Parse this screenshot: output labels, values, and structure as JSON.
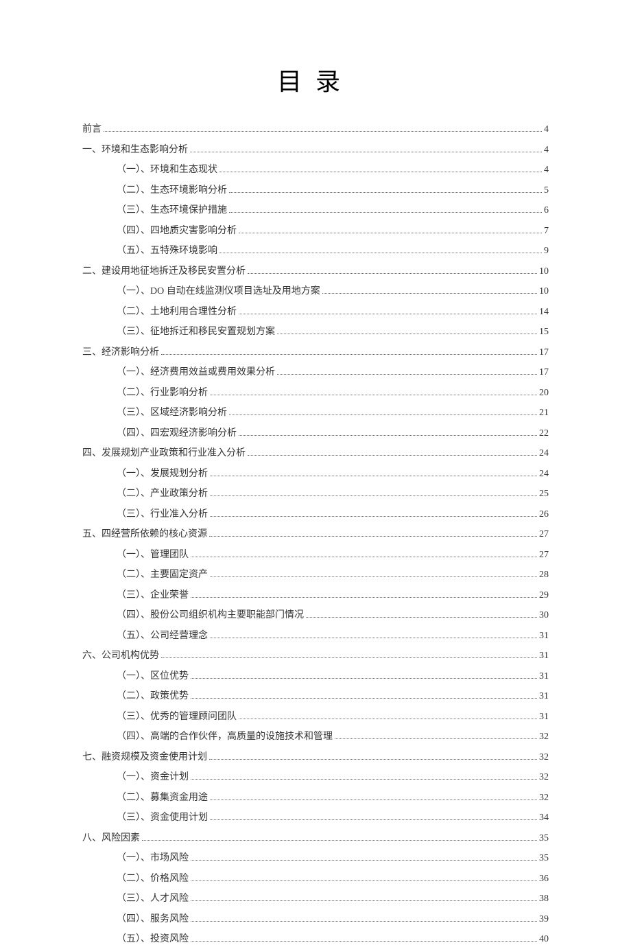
{
  "title": "目录",
  "entries": [
    {
      "level": 1,
      "label": "前言",
      "page": 4
    },
    {
      "level": 1,
      "label": "一、环境和生态影响分析",
      "page": 4
    },
    {
      "level": 2,
      "label": "（一）、环境和生态现状",
      "page": 4
    },
    {
      "level": 2,
      "label": "（二）、生态环境影响分析",
      "page": 5
    },
    {
      "level": 2,
      "label": "（三）、生态环境保护措施",
      "page": 6
    },
    {
      "level": 2,
      "label": "（四）、四地质灾害影响分析",
      "page": 7
    },
    {
      "level": 2,
      "label": "（五）、五特殊环境影响",
      "page": 9
    },
    {
      "level": 1,
      "label": "二、建设用地征地拆迁及移民安置分析",
      "page": 10
    },
    {
      "level": 2,
      "label": "（一）、DO 自动在线监测仪项目选址及用地方案",
      "page": 10
    },
    {
      "level": 2,
      "label": "（二）、土地利用合理性分析",
      "page": 14
    },
    {
      "level": 2,
      "label": "（三）、征地拆迁和移民安置规划方案",
      "page": 15
    },
    {
      "level": 1,
      "label": "三、经济影响分析",
      "page": 17
    },
    {
      "level": 2,
      "label": "（一）、经济费用效益或费用效果分析",
      "page": 17
    },
    {
      "level": 2,
      "label": "（二）、行业影响分析",
      "page": 20
    },
    {
      "level": 2,
      "label": "（三）、区域经济影响分析",
      "page": 21
    },
    {
      "level": 2,
      "label": "（四）、四宏观经济影响分析",
      "page": 22
    },
    {
      "level": 1,
      "label": "四、发展规划产业政策和行业准入分析",
      "page": 24
    },
    {
      "level": 2,
      "label": "（一）、发展规划分析",
      "page": 24
    },
    {
      "level": 2,
      "label": "（二）、产业政策分析",
      "page": 25
    },
    {
      "level": 2,
      "label": "（三）、行业准入分析",
      "page": 26
    },
    {
      "level": 1,
      "label": "五、四经营所依赖的核心资源",
      "page": 27
    },
    {
      "level": 2,
      "label": "（一）、管理团队",
      "page": 27
    },
    {
      "level": 2,
      "label": "（二）、主要固定资产",
      "page": 28
    },
    {
      "level": 2,
      "label": "（三）、企业荣誉",
      "page": 29
    },
    {
      "level": 2,
      "label": "（四）、股份公司组织机构主要职能部门情况",
      "page": 30
    },
    {
      "level": 2,
      "label": "（五）、公司经营理念",
      "page": 31
    },
    {
      "level": 1,
      "label": "六、公司机构优势",
      "page": 31
    },
    {
      "level": 2,
      "label": "（一）、区位优势",
      "page": 31
    },
    {
      "level": 2,
      "label": "（二）、政策优势",
      "page": 31
    },
    {
      "level": 2,
      "label": "（三）、优秀的管理顾问团队",
      "page": 31
    },
    {
      "level": 2,
      "label": "（四）、高端的合作伙伴，高质量的设施技术和管理",
      "page": 32
    },
    {
      "level": 1,
      "label": "七、融资规模及资金使用计划",
      "page": 32
    },
    {
      "level": 2,
      "label": "（一）、资金计划",
      "page": 32
    },
    {
      "level": 2,
      "label": "（二）、募集资金用途",
      "page": 32
    },
    {
      "level": 2,
      "label": "（三）、资金使用计划",
      "page": 34
    },
    {
      "level": 1,
      "label": "八、风险因素",
      "page": 35
    },
    {
      "level": 2,
      "label": "（一）、市场风险",
      "page": 35
    },
    {
      "level": 2,
      "label": "（二）、价格风险",
      "page": 36
    },
    {
      "level": 2,
      "label": "（三）、人才风险",
      "page": 38
    },
    {
      "level": 2,
      "label": "（四）、服务风险",
      "page": 39
    },
    {
      "level": 2,
      "label": "（五）、投资风险",
      "page": 40
    }
  ]
}
